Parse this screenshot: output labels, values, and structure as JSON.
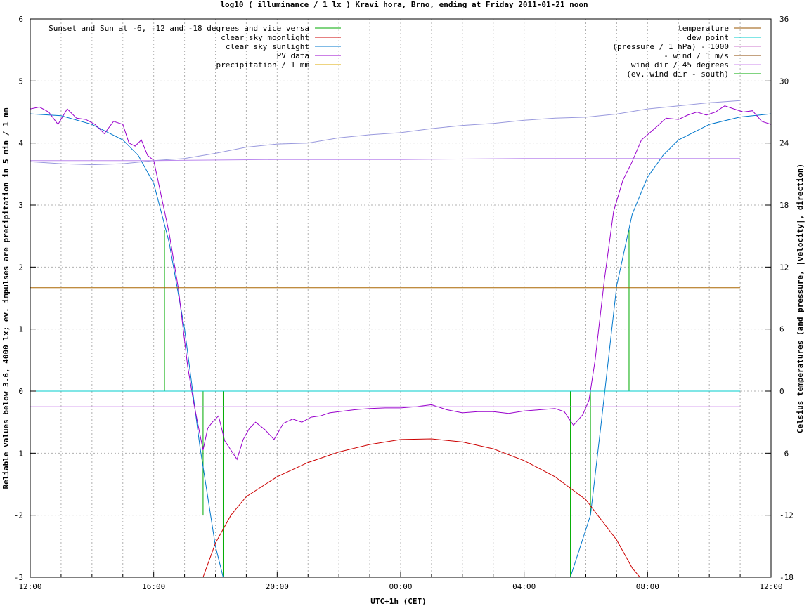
{
  "chart_data": {
    "type": "line",
    "title": "log10 ( illuminance / 1 lx ) Kravi hora, Brno, ending at Friday 2011-01-21 noon",
    "xlabel": "UTC+1h (CET)",
    "ylabel": "Reliable values below 3.6, 4000 lx; ev. impulses are precipitation in 5 min / 1 mm",
    "y2label": "Celsius temperatures (and pressure, |velocity|, direction)",
    "xlim": [
      0,
      24
    ],
    "ylim": [
      -3,
      6
    ],
    "y2lim": [
      -18,
      36
    ],
    "grid": true,
    "x_ticks": [
      {
        "v": 0,
        "label": "12:00"
      },
      {
        "v": 4,
        "label": "16:00"
      },
      {
        "v": 8,
        "label": "20:00"
      },
      {
        "v": 12,
        "label": "00:00"
      },
      {
        "v": 16,
        "label": "04:00"
      },
      {
        "v": 20,
        "label": "08:00"
      },
      {
        "v": 24,
        "label": "12:00"
      }
    ],
    "y_ticks": [
      -3,
      -2,
      -1,
      0,
      1,
      2,
      3,
      4,
      5,
      6
    ],
    "y2_ticks": [
      -18,
      -12,
      -6,
      0,
      6,
      12,
      18,
      24,
      30,
      36
    ],
    "legend_left": [
      {
        "name": "Sunset and Sun at -6, -12 and -18 degrees and vice versa",
        "color": "#00aa00"
      },
      {
        "name": "clear sky moonlight",
        "color": "#cc0000"
      },
      {
        "name": "clear sky sunlight",
        "color": "#0077cc"
      },
      {
        "name": "PV data",
        "color": "#9900cc"
      },
      {
        "name": "precipitation / 1 mm",
        "color": "#ddaa00"
      }
    ],
    "legend_right": [
      {
        "name": "temperature",
        "color": "#995500"
      },
      {
        "name": "dew point",
        "color": "#00cccc"
      },
      {
        "name": "(pressure / 1 hPa) - 1000",
        "color": "#cc77cc"
      },
      {
        "name": "- wind / 1 m/s",
        "color": "#884400"
      },
      {
        "name": "wind dir / 45 degrees",
        "color": "#cc88ee"
      },
      {
        "name": "(ev. wind dir - south)",
        "color": "#00aa00"
      }
    ],
    "sun_events": [
      {
        "x": 4.35,
        "y": 2.6
      },
      {
        "x": 5.6,
        "y": -2.0
      },
      {
        "x": 6.25,
        "y": -3.0
      },
      {
        "x": 17.5,
        "y": -3.0
      },
      {
        "x": 18.15,
        "y": -2.0
      },
      {
        "x": 19.4,
        "y": 2.6
      }
    ],
    "series": [
      {
        "name": "clear sky sunlight",
        "color": "#0077cc",
        "axis": "y",
        "x": [
          0,
          1,
          2,
          3,
          3.5,
          4,
          4.5,
          5,
          5.5,
          6,
          6.25,
          17.5,
          18.15,
          18.5,
          19,
          19.5,
          20,
          20.5,
          21,
          22,
          23,
          24
        ],
        "y": [
          4.47,
          4.44,
          4.3,
          4.05,
          3.8,
          3.35,
          2.4,
          1.0,
          -0.9,
          -2.5,
          -3.0,
          -3.0,
          -2.0,
          -0.5,
          1.7,
          2.85,
          3.45,
          3.8,
          4.05,
          4.3,
          4.42,
          4.47
        ]
      },
      {
        "name": "clear sky moonlight",
        "color": "#cc0000",
        "axis": "y",
        "x": [
          5.6,
          6,
          6.5,
          7,
          8,
          9,
          10,
          11,
          12,
          13,
          14,
          15,
          16,
          17,
          18,
          19,
          19.5,
          19.75
        ],
        "y": [
          -3.0,
          -2.45,
          -2.0,
          -1.7,
          -1.38,
          -1.15,
          -0.98,
          -0.86,
          -0.78,
          -0.77,
          -0.82,
          -0.93,
          -1.12,
          -1.38,
          -1.75,
          -2.4,
          -2.85,
          -3.0
        ]
      },
      {
        "name": "PV data",
        "color": "#9900cc",
        "axis": "y",
        "x": [
          0,
          0.3,
          0.6,
          0.9,
          1.2,
          1.5,
          1.8,
          2.1,
          2.4,
          2.7,
          3.0,
          3.2,
          3.4,
          3.6,
          3.8,
          4.0,
          4.2,
          4.5,
          4.8,
          5.1,
          5.3,
          5.5,
          5.6,
          5.75,
          5.9,
          6.1,
          6.3,
          6.5,
          6.7,
          6.9,
          7.1,
          7.3,
          7.6,
          7.9,
          8.2,
          8.5,
          8.8,
          9.1,
          9.4,
          9.7,
          10.0,
          10.5,
          11.0,
          11.5,
          12.0,
          12.5,
          13.0,
          13.5,
          14.0,
          14.5,
          15.0,
          15.5,
          16.0,
          16.5,
          17.0,
          17.3,
          17.6,
          17.9,
          18.1,
          18.3,
          18.6,
          18.9,
          19.2,
          19.5,
          19.8,
          20.2,
          20.6,
          21.0,
          21.3,
          21.6,
          21.9,
          22.2,
          22.5,
          22.8,
          23.1,
          23.4,
          23.7,
          24.0
        ],
        "y": [
          4.55,
          4.58,
          4.5,
          4.3,
          4.55,
          4.4,
          4.38,
          4.3,
          4.15,
          4.35,
          4.3,
          4.0,
          3.95,
          4.05,
          3.8,
          3.72,
          3.25,
          2.55,
          1.65,
          0.4,
          -0.2,
          -0.7,
          -0.95,
          -0.6,
          -0.5,
          -0.4,
          -0.8,
          -0.95,
          -1.1,
          -0.78,
          -0.6,
          -0.5,
          -0.62,
          -0.78,
          -0.52,
          -0.45,
          -0.5,
          -0.42,
          -0.4,
          -0.35,
          -0.33,
          -0.3,
          -0.28,
          -0.27,
          -0.27,
          -0.25,
          -0.22,
          -0.3,
          -0.35,
          -0.33,
          -0.33,
          -0.36,
          -0.32,
          -0.3,
          -0.28,
          -0.33,
          -0.55,
          -0.38,
          -0.15,
          0.5,
          1.8,
          2.9,
          3.4,
          3.7,
          4.05,
          4.22,
          4.4,
          4.38,
          4.45,
          4.5,
          4.45,
          4.5,
          4.6,
          4.55,
          4.5,
          4.52,
          4.35,
          4.3
        ]
      },
      {
        "name": "(pressure / 1 hPa) - 1000",
        "color": "#9999dd",
        "axis": "y2",
        "x": [
          0,
          1,
          2,
          3,
          4,
          5,
          6,
          7,
          8,
          9,
          10,
          11,
          12,
          13,
          14,
          15,
          16,
          17,
          18,
          19,
          20,
          21,
          22,
          23
        ],
        "y": [
          22.2,
          22.0,
          21.9,
          22.0,
          22.3,
          22.5,
          23.0,
          23.6,
          23.9,
          24.0,
          24.5,
          24.8,
          25.0,
          25.4,
          25.7,
          25.9,
          26.2,
          26.4,
          26.5,
          26.8,
          27.3,
          27.6,
          27.9,
          28.1
        ]
      },
      {
        "name": "wind dir / 45 degrees",
        "color": "#bb88ee",
        "axis": "y2",
        "x": [
          0,
          4,
          8,
          12,
          16,
          20,
          23
        ],
        "y": [
          22.3,
          22.3,
          22.4,
          22.4,
          22.5,
          22.5,
          22.5
        ]
      },
      {
        "name": "- wind / 1 m/s",
        "color": "#aa6600",
        "axis": "y2",
        "x": [
          0,
          23
        ],
        "y": [
          10.0,
          10.0
        ]
      },
      {
        "name": "dew point",
        "color": "#00cccc",
        "axis": "y2",
        "x": [
          0,
          23
        ],
        "y": [
          0,
          0
        ]
      },
      {
        "name": "wind dir",
        "color": "#cc88ee",
        "axis": "y2",
        "x": [
          0,
          23
        ],
        "y": [
          -1.5,
          -1.5
        ]
      }
    ]
  }
}
